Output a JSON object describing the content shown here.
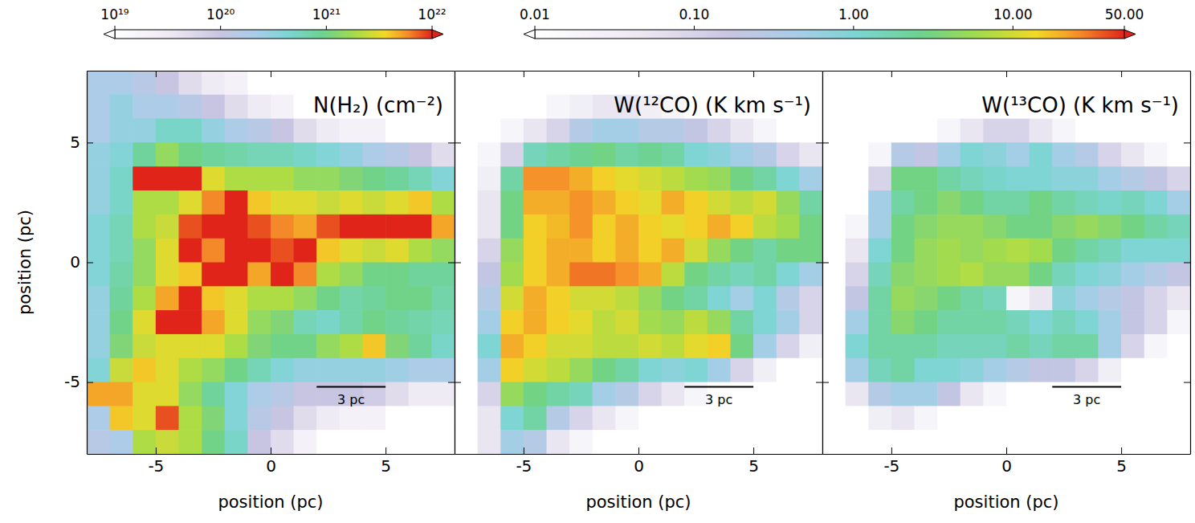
{
  "chart_data": [
    {
      "type": "heatmap",
      "title": "N(H₂) (cm⁻²)",
      "xlabel": "position (pc)",
      "ylabel": "position (pc)",
      "xlim": [
        -8,
        8
      ],
      "ylim": [
        -8,
        8
      ],
      "xticks": [
        -5,
        0,
        5
      ],
      "yticks": [
        -5,
        0,
        5
      ],
      "x": [
        -7.5,
        -6.5,
        -5.5,
        -4.5,
        -3.5,
        -2.5,
        -1.5,
        -0.5,
        0.5,
        1.5,
        2.5,
        3.5,
        4.5,
        5.5,
        6.5,
        7.5
      ],
      "y": [
        7.5,
        6.5,
        5.5,
        4.5,
        3.5,
        2.5,
        1.5,
        0.5,
        -0.5,
        -1.5,
        -2.5,
        -3.5,
        -4.5,
        -5.5,
        -6.5,
        -7.5
      ],
      "cells": [
        [
          2e+20,
          2e+20,
          1.5e+20,
          1e+20,
          5e+19,
          3e+19,
          2e+19,
          1e+19,
          1e+19,
          1e+19,
          1e+19,
          1e+19,
          1e+19,
          1e+19,
          1e+19,
          1e+19
        ],
        [
          2e+20,
          3e+20,
          2e+20,
          2e+20,
          1.5e+20,
          1e+20,
          5e+19,
          3e+19,
          2e+19,
          1e+19,
          1e+19,
          1e+19,
          1e+19,
          1e+19,
          1e+19,
          1e+19
        ],
        [
          2e+20,
          3e+20,
          3e+20,
          5e+20,
          5e+20,
          3e+20,
          2e+20,
          1.5e+20,
          1e+20,
          5e+19,
          3e+19,
          2e+19,
          2e+19,
          1e+19,
          1e+19,
          1e+19
        ],
        [
          3e+20,
          4e+20,
          8e+20,
          1.5e+21,
          1e+21,
          8e+20,
          7e+20,
          6e+20,
          6e+20,
          5e+20,
          4e+20,
          3e+20,
          2e+20,
          1.5e+20,
          1e+20,
          5e+19
        ],
        [
          3e+20,
          5e+20,
          1.5e+22,
          1.2e+22,
          1e+22,
          3e+21,
          2e+21,
          2e+21,
          2e+21,
          1.5e+21,
          1.5e+21,
          1.2e+21,
          1e+21,
          8e+20,
          6e+20,
          4e+20
        ],
        [
          3e+20,
          5e+20,
          2e+21,
          2e+21,
          3e+21,
          6e+21,
          1.2e+22,
          4e+21,
          3e+21,
          3e+21,
          2.5e+21,
          3e+21,
          2.5e+21,
          3e+21,
          4e+21,
          2e+21
        ],
        [
          4e+20,
          6e+20,
          2e+21,
          2.5e+21,
          8e+21,
          1.2e+22,
          1.5e+22,
          8e+21,
          6e+21,
          5e+21,
          8e+21,
          1.2e+22,
          1.3e+22,
          1e+22,
          1.5e+22,
          5e+21
        ],
        [
          4e+20,
          6e+20,
          1.5e+21,
          3e+21,
          1.5e+22,
          6e+21,
          1e+22,
          1.2e+22,
          8e+21,
          1.5e+22,
          4e+21,
          3e+21,
          2.5e+21,
          3e+21,
          2e+21,
          1.5e+21
        ],
        [
          4e+20,
          7e+20,
          1.5e+21,
          3e+21,
          4e+21,
          1.2e+22,
          1.2e+22,
          5e+21,
          1e+22,
          6e+21,
          2e+21,
          1.5e+21,
          1e+21,
          1e+21,
          8e+20,
          8e+20
        ],
        [
          3e+20,
          8e+20,
          2e+21,
          5e+21,
          1.2e+22,
          4e+21,
          3e+21,
          2e+21,
          2e+21,
          1.5e+21,
          1e+21,
          7e+20,
          8e+20,
          1e+21,
          1e+21,
          7e+20
        ],
        [
          3e+20,
          1e+21,
          3e+21,
          1.2e+22,
          1e+22,
          5e+21,
          3e+21,
          1.5e+21,
          1.2e+21,
          6e+20,
          5e+20,
          7e+20,
          1e+21,
          8e+20,
          7e+20,
          6e+20
        ],
        [
          3e+20,
          1.2e+21,
          2.5e+21,
          3e+21,
          3e+21,
          3e+21,
          2e+21,
          1.2e+21,
          1e+21,
          1e+21,
          1.5e+21,
          2e+21,
          4e+21,
          1.2e+21,
          8e+20,
          5e+20
        ],
        [
          4e+20,
          2.5e+21,
          4e+21,
          3e+21,
          2e+21,
          1.5e+21,
          1e+21,
          6e+20,
          4e+20,
          3e+20,
          3e+20,
          3e+20,
          3e+20,
          2.5e+20,
          2e+20,
          2e+20
        ],
        [
          5e+21,
          5e+21,
          3e+21,
          3e+21,
          1.5e+21,
          8e+20,
          4e+20,
          2e+20,
          1.5e+20,
          1e+20,
          1e+20,
          1e+20,
          8e+19,
          5e+19,
          3e+19,
          3e+19
        ],
        [
          2e+20,
          4e+21,
          3e+21,
          8e+21,
          2e+21,
          1.2e+21,
          4e+20,
          1.5e+20,
          1e+20,
          5e+19,
          3e+19,
          2e+19,
          2e+19,
          1e+19,
          1e+19,
          1e+19
        ],
        [
          1.5e+20,
          2e+20,
          2e+21,
          2.5e+21,
          2e+21,
          1e+21,
          5e+20,
          1e+20,
          5e+19,
          2e+19,
          1e+19,
          1e+19,
          1e+19,
          1e+19,
          1e+19,
          1e+19
        ]
      ],
      "colorbar": {
        "range": [
          1e+19,
          1e+22
        ],
        "log": true,
        "ticks": [
          {
            "value": 1e+19,
            "label": "10¹⁹"
          },
          {
            "value": 1e+20,
            "label": "10²⁰"
          },
          {
            "value": 1e+21,
            "label": "10²¹"
          },
          {
            "value": 1e+22,
            "label": "10²²"
          }
        ]
      },
      "scale_bar": {
        "x": [
          2,
          5
        ],
        "y": -5.2,
        "label": "3 pc"
      }
    },
    {
      "type": "heatmap",
      "title": "W(¹²CO) (K km s⁻¹)",
      "xlabel": "position (pc)",
      "tick_labels": "x",
      "xlim": [
        -8,
        8
      ],
      "ylim": [
        -8,
        8
      ],
      "xticks": [
        -5,
        0,
        5
      ],
      "yticks": [
        -5,
        0,
        5
      ],
      "x": [
        -7.5,
        -6.5,
        -5.5,
        -4.5,
        -3.5,
        -2.5,
        -1.5,
        -0.5,
        0.5,
        1.5,
        2.5,
        3.5,
        4.5,
        5.5,
        6.5,
        7.5
      ],
      "y": [
        7.5,
        6.5,
        5.5,
        4.5,
        3.5,
        2.5,
        1.5,
        0.5,
        -0.5,
        -1.5,
        -2.5,
        -3.5,
        -4.5,
        -5.5,
        -6.5,
        -7.5
      ],
      "cells": [
        [
          0.01,
          0.01,
          0.01,
          0.01,
          0.01,
          0.01,
          0.01,
          0.01,
          0.01,
          0.01,
          0.01,
          0.01,
          0.01,
          0.01,
          0.01,
          0.01
        ],
        [
          0.01,
          0.01,
          0.01,
          0.01,
          0.02,
          0.03,
          0.05,
          0.05,
          0.03,
          0.02,
          0.01,
          0.01,
          0.01,
          0.01,
          0.01,
          0.01
        ],
        [
          0.01,
          0.01,
          0.02,
          0.05,
          0.1,
          0.3,
          0.5,
          0.5,
          0.3,
          0.3,
          0.2,
          0.1,
          0.05,
          0.02,
          0.01,
          0.01
        ],
        [
          0.01,
          0.02,
          0.1,
          1.5,
          2,
          2.5,
          3,
          2,
          2.5,
          2,
          1,
          0.8,
          0.5,
          0.3,
          0.1,
          0.05
        ],
        [
          0.01,
          0.03,
          2,
          25,
          25,
          20,
          15,
          12,
          10,
          8,
          6,
          5,
          3,
          2,
          1,
          0.5
        ],
        [
          0.01,
          0.05,
          3,
          20,
          20,
          25,
          20,
          15,
          12,
          20,
          15,
          10,
          8,
          10,
          5,
          2
        ],
        [
          0.01,
          0.05,
          3,
          15,
          18,
          25,
          15,
          20,
          15,
          12,
          15,
          20,
          15,
          8,
          6,
          3
        ],
        [
          0.01,
          0.1,
          5,
          15,
          20,
          20,
          15,
          20,
          15,
          20,
          10,
          5,
          3,
          2,
          3,
          3
        ],
        [
          0.01,
          0.2,
          6,
          15,
          20,
          30,
          30,
          25,
          20,
          8,
          3,
          2,
          1.5,
          2,
          1,
          0.5
        ],
        [
          0.01,
          0.3,
          10,
          20,
          15,
          10,
          10,
          8,
          5,
          3,
          2,
          1,
          0.5,
          1,
          0.3,
          0.1
        ],
        [
          0.01,
          0.5,
          15,
          20,
          15,
          12,
          8,
          10,
          6,
          5,
          8,
          5,
          2,
          1,
          0.5,
          0.1
        ],
        [
          0.01,
          1,
          20,
          15,
          10,
          10,
          8,
          8,
          10,
          8,
          12,
          15,
          3,
          0.5,
          0.1,
          0.03
        ],
        [
          0.01,
          0.5,
          15,
          10,
          8,
          5,
          3,
          2,
          1,
          0.8,
          1,
          0.5,
          0.1,
          0.03,
          0.01,
          0.01
        ],
        [
          0.01,
          0.1,
          5,
          3,
          2,
          1.5,
          0.5,
          0.3,
          0.1,
          0.05,
          0.02,
          0.01,
          0.01,
          0.01,
          0.01,
          0.01
        ],
        [
          0.01,
          0.05,
          1,
          2,
          0.3,
          0.1,
          0.05,
          0.02,
          0.01,
          0.01,
          0.01,
          0.01,
          0.01,
          0.01,
          0.01,
          0.01
        ],
        [
          0.01,
          0.05,
          0.5,
          0.3,
          0.05,
          0.02,
          0.01,
          0.01,
          0.01,
          0.01,
          0.01,
          0.01,
          0.01,
          0.01,
          0.01,
          0.01
        ]
      ],
      "colorbar": {
        "range": [
          0.01,
          50
        ],
        "log": true,
        "ticks": [
          0.01,
          {
            "value": 0.1,
            "label": "0.10"
          },
          {
            "value": 1,
            "label": "1.00"
          },
          {
            "value": 10,
            "label": "10.00"
          },
          {
            "value": 50,
            "label": "50.00"
          }
        ]
      },
      "scale_bar": {
        "x": [
          2,
          5
        ],
        "y": -5.2,
        "label": "3 pc"
      }
    },
    {
      "type": "heatmap",
      "title": "W(¹³CO) (K km s⁻¹)",
      "xlabel": "position (pc)",
      "tick_labels": "x",
      "xlim": [
        -8,
        8
      ],
      "ylim": [
        -8,
        8
      ],
      "xticks": [
        -5,
        0,
        5
      ],
      "yticks": [
        -5,
        0,
        5
      ],
      "x": [
        -7.5,
        -6.5,
        -5.5,
        -4.5,
        -3.5,
        -2.5,
        -1.5,
        -0.5,
        0.5,
        1.5,
        2.5,
        3.5,
        4.5,
        5.5,
        6.5,
        7.5
      ],
      "y": [
        7.5,
        6.5,
        5.5,
        4.5,
        3.5,
        2.5,
        1.5,
        0.5,
        -0.5,
        -1.5,
        -2.5,
        -3.5,
        -4.5,
        -5.5,
        -6.5,
        -7.5
      ],
      "cells": [
        [
          0.01,
          0.01,
          0.01,
          0.01,
          0.01,
          0.01,
          0.01,
          0.01,
          0.01,
          0.01,
          0.01,
          0.01,
          0.01,
          0.01,
          0.01,
          0.01
        ],
        [
          0.01,
          0.01,
          0.01,
          0.01,
          0.01,
          0.01,
          0.01,
          0.01,
          0.01,
          0.01,
          0.01,
          0.01,
          0.01,
          0.01,
          0.01,
          0.01
        ],
        [
          0.01,
          0.01,
          0.01,
          0.01,
          0.01,
          0.02,
          0.05,
          0.1,
          0.1,
          0.05,
          0.02,
          0.01,
          0.01,
          0.01,
          0.01,
          0.01
        ],
        [
          0.01,
          0.01,
          0.02,
          0.3,
          0.2,
          0.5,
          1,
          0.8,
          0.5,
          1,
          0.5,
          0.3,
          0.1,
          0.05,
          0.02,
          0.01
        ],
        [
          0.01,
          0.01,
          0.1,
          3,
          3,
          2,
          1.5,
          1.2,
          1,
          1,
          0.8,
          0.8,
          0.5,
          0.3,
          0.2,
          0.1
        ],
        [
          0.01,
          0.01,
          0.5,
          2,
          3,
          4,
          3,
          2,
          2,
          3,
          2,
          1.5,
          1.2,
          1.5,
          1,
          0.5
        ],
        [
          0.01,
          0.02,
          0.5,
          3,
          4,
          5,
          5,
          4,
          3,
          3,
          4,
          5,
          4,
          3,
          2,
          1.5
        ],
        [
          0.01,
          0.05,
          1,
          3,
          5,
          6,
          5,
          6,
          7,
          6,
          3,
          2,
          1.5,
          1,
          1,
          1
        ],
        [
          0.01,
          0.1,
          1.5,
          4,
          5,
          6,
          7,
          5,
          5,
          3,
          1.5,
          1,
          0.8,
          0.5,
          0.3,
          0.2
        ],
        [
          0.01,
          0.2,
          2,
          5,
          4,
          3,
          2,
          1.5,
          0.02,
          0.05,
          0.8,
          0.5,
          0.3,
          0.2,
          0.1,
          0.05
        ],
        [
          0.01,
          0.5,
          2,
          4,
          3,
          2,
          2,
          2,
          1.5,
          1,
          1.5,
          1,
          0.5,
          0.2,
          0.1,
          0.02
        ],
        [
          0.01,
          1,
          2,
          2,
          2,
          1.5,
          1.5,
          1.5,
          2,
          1.5,
          2,
          2,
          0.5,
          0.1,
          0.02,
          0.01
        ],
        [
          0.01,
          0.5,
          1.5,
          2,
          1,
          1,
          0.8,
          0.5,
          0.3,
          0.2,
          0.2,
          0.1,
          0.03,
          0.01,
          0.01,
          0.01
        ],
        [
          0.01,
          0.05,
          0.3,
          0.5,
          0.5,
          0.2,
          0.05,
          0.02,
          0.01,
          0.01,
          0.01,
          0.01,
          0.01,
          0.01,
          0.01,
          0.01
        ],
        [
          0.01,
          0.01,
          0.03,
          0.05,
          0.02,
          0.01,
          0.01,
          0.01,
          0.01,
          0.01,
          0.01,
          0.01,
          0.01,
          0.01,
          0.01,
          0.01
        ],
        [
          0.01,
          0.01,
          0.01,
          0.01,
          0.01,
          0.01,
          0.01,
          0.01,
          0.01,
          0.01,
          0.01,
          0.01,
          0.01,
          0.01,
          0.01,
          0.01
        ]
      ],
      "scale_bar": {
        "x": [
          2,
          5
        ],
        "y": -5.2,
        "label": "3 pc"
      }
    }
  ]
}
